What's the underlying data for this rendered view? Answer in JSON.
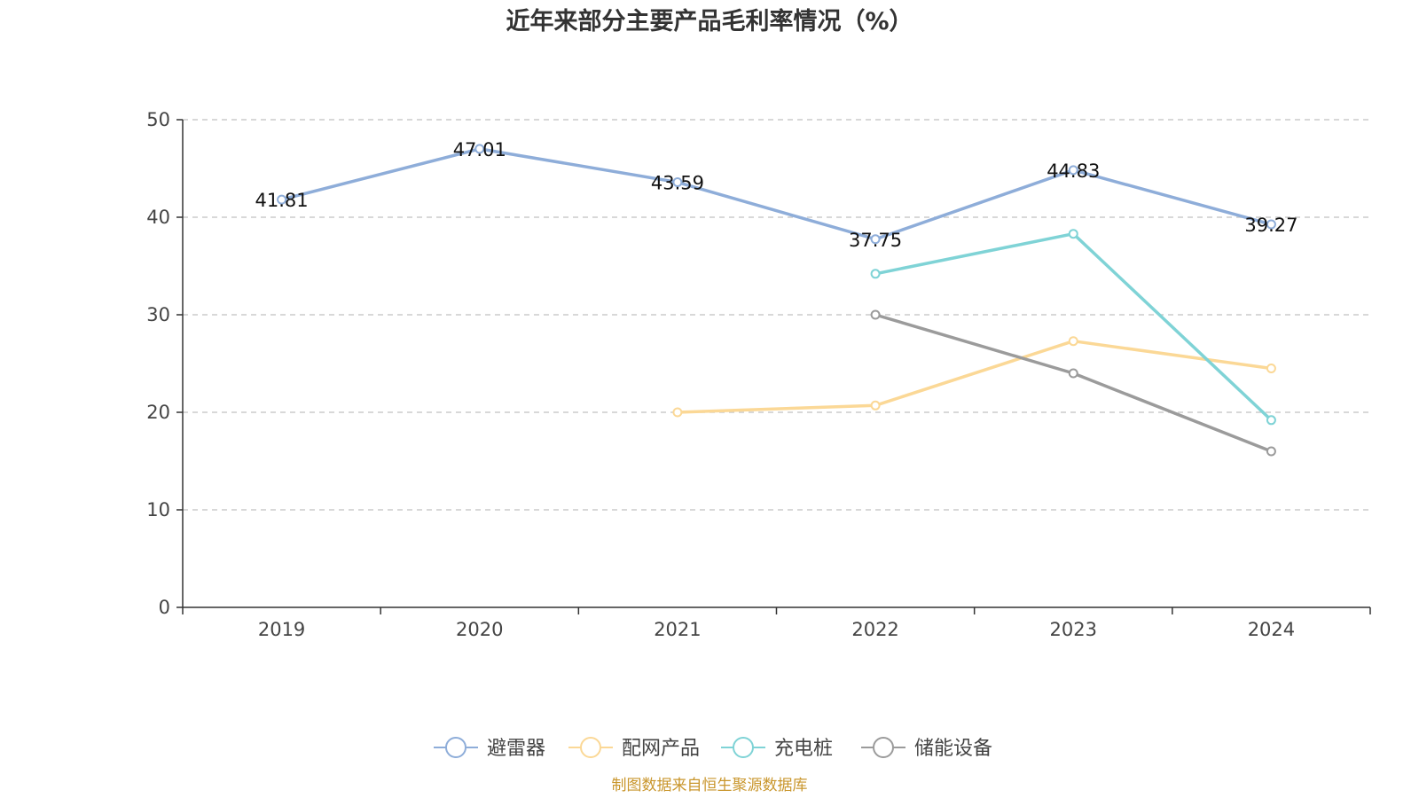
{
  "chart_data": {
    "type": "line",
    "title": "近年来部分主要产品毛利率情况（%）",
    "categories": [
      "2019",
      "2020",
      "2021",
      "2022",
      "2023",
      "2024"
    ],
    "ylim": [
      0,
      50
    ],
    "yticks": [
      0,
      10,
      20,
      30,
      40,
      50
    ],
    "grid": true,
    "legend_position": "bottom-center",
    "series": [
      {
        "name": "避雷器",
        "color": "#8eadd9",
        "values": [
          41.81,
          47.01,
          43.59,
          37.75,
          44.83,
          39.27
        ],
        "labels": [
          "41.81",
          "47.01",
          "43.59",
          "37.75",
          "44.83",
          "39.27"
        ]
      },
      {
        "name": "配网产品",
        "color": "#fbd896",
        "values": [
          null,
          null,
          20.0,
          20.7,
          27.3,
          24.5
        ]
      },
      {
        "name": "充电桩",
        "color": "#7fd3d6",
        "values": [
          null,
          null,
          null,
          34.2,
          38.3,
          19.2
        ]
      },
      {
        "name": "储能设备",
        "color": "#9b9b9b",
        "values": [
          null,
          null,
          null,
          30.0,
          24.0,
          16.0
        ]
      }
    ],
    "source": "制图数据来自恒生聚源数据库",
    "source_color": "#c9962c"
  }
}
